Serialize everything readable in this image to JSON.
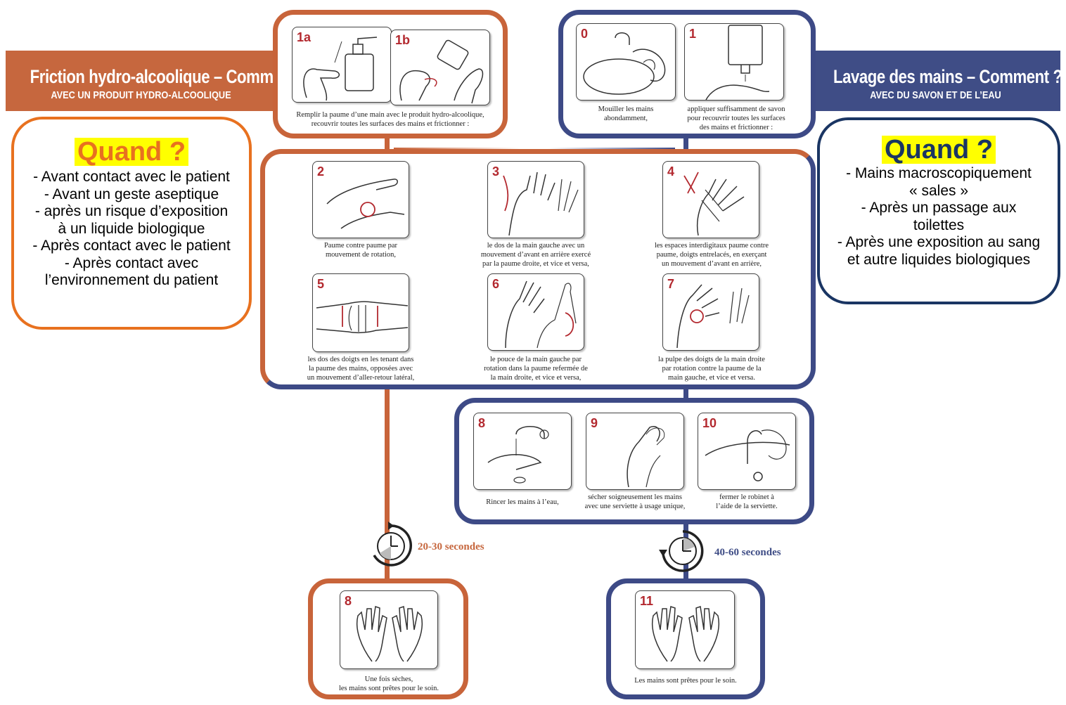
{
  "left_banner": {
    "title": "Friction hydro-alcoolique – Comment ?",
    "subtitle": "AVEC UN PRODUIT HYDRO-ALCOOLIQUE"
  },
  "right_banner": {
    "title": "Lavage des mains – Comment ?",
    "subtitle": "AVEC DU SAVON ET DE L’EAU"
  },
  "quand_left": {
    "title": "Quand ?",
    "lines": [
      "- Avant contact avec le patient",
      "- Avant un geste aseptique",
      "- après un risque d’exposition",
      "à un liquide biologique",
      "- Après contact avec le patient",
      "- Après contact avec",
      "l’environnement du patient"
    ]
  },
  "quand_right": {
    "title": "Quand ?",
    "lines": [
      "- Mains macroscopiquement",
      "« sales »",
      "- Après un passage aux",
      "toilettes",
      "- Après une exposition au sang",
      "et autre liquides biologiques"
    ]
  },
  "steps": {
    "s1a": {
      "num": "1a"
    },
    "s1b": {
      "num": "1b"
    },
    "cap1": "Remplir la paume d’une main avec le produit hydro-alcoolique,\nrecouvrir toutes les surfaces des mains et frictionner :",
    "s0": {
      "num": "0",
      "caption": "Mouiller les mains\nabondamment,"
    },
    "s1": {
      "num": "1",
      "caption": "appliquer suffisamment de savon\npour recouvrir toutes les surfaces\ndes mains et frictionner :"
    },
    "s2": {
      "num": "2",
      "caption": "Paume contre paume par\nmouvement de rotation,"
    },
    "s3": {
      "num": "3",
      "caption": "le dos de la main gauche avec un\nmouvement d’avant en arrière exercé\npar la paume droite, et vice et versa,"
    },
    "s4": {
      "num": "4",
      "caption": "les espaces interdigitaux paume contre\npaume, doigts entrelacés, en exerçant\nun mouvement d’avant en arrière,"
    },
    "s5": {
      "num": "5",
      "caption": "les dos des doigts en les tenant dans\nla paume des mains, opposées avec\nun mouvement d’aller-retour latéral,"
    },
    "s6": {
      "num": "6",
      "caption": "le pouce de la main gauche par\nrotation dans la paume refermée de\nla main droite, et vice et versa,"
    },
    "s7": {
      "num": "7",
      "caption": "la pulpe des doigts de la main droite\npar rotation contre la paume de la\nmain gauche, et vice et versa."
    },
    "s8w": {
      "num": "8",
      "caption": "Rincer les mains à l’eau,"
    },
    "s9": {
      "num": "9",
      "caption": "sécher soigneusement les mains\navec une serviette à usage unique,"
    },
    "s10": {
      "num": "10",
      "caption": "fermer le robinet à\nl’aide de la serviette."
    },
    "s8f": {
      "num": "8",
      "caption": "Une fois sèches,\nles mains sont prêtes pour le soin."
    },
    "s11": {
      "num": "11",
      "caption": "Les mains sont prêtes pour le soin."
    }
  },
  "durations": {
    "friction": "20-30 secondes",
    "lavage": "40-60 secondes"
  },
  "colors": {
    "friction": "#c8643a",
    "lavage": "#3d4a86",
    "quand_left_border": "#e8711f",
    "quand_right_border": "#1a3563",
    "highlight": "#ffff00",
    "step_number": "#b3292f"
  },
  "icons": [
    "hand-illustration",
    "soap-dispenser-icon",
    "sink-icon",
    "faucet-icon",
    "timer-icon",
    "rotation-arrow-icon"
  ]
}
